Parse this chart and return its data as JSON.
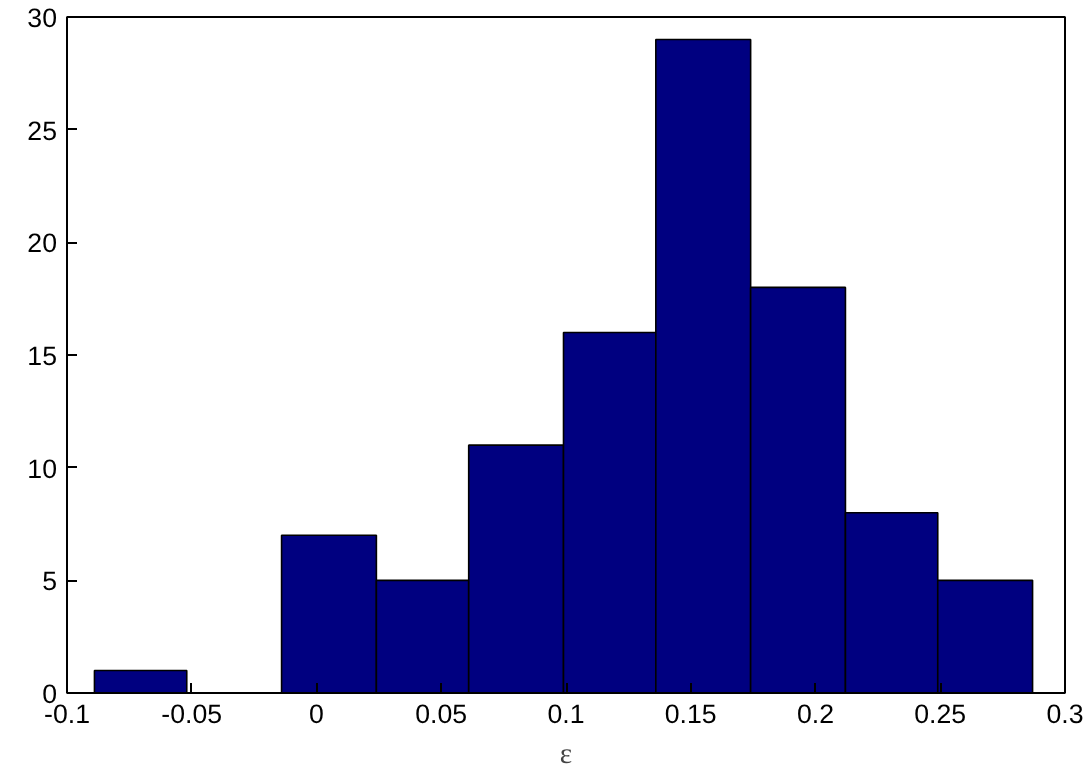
{
  "chart_data": {
    "type": "histogram",
    "xlabel": "ε",
    "bins": [
      -0.089,
      -0.052,
      -0.014,
      0.024,
      0.061,
      0.099,
      0.136,
      0.174,
      0.212,
      0.249,
      0.287
    ],
    "values": [
      1,
      0,
      7,
      5,
      11,
      16,
      29,
      18,
      8,
      5
    ],
    "color": "#000080",
    "xlim": [
      -0.1,
      0.3
    ],
    "xticks": [
      -0.1,
      -0.05,
      0,
      0.05,
      0.1,
      0.15,
      0.2,
      0.25,
      0.3
    ],
    "ylim": [
      0,
      30
    ],
    "yticks": [
      0,
      5,
      10,
      15,
      20,
      25,
      30
    ],
    "grid": false
  }
}
